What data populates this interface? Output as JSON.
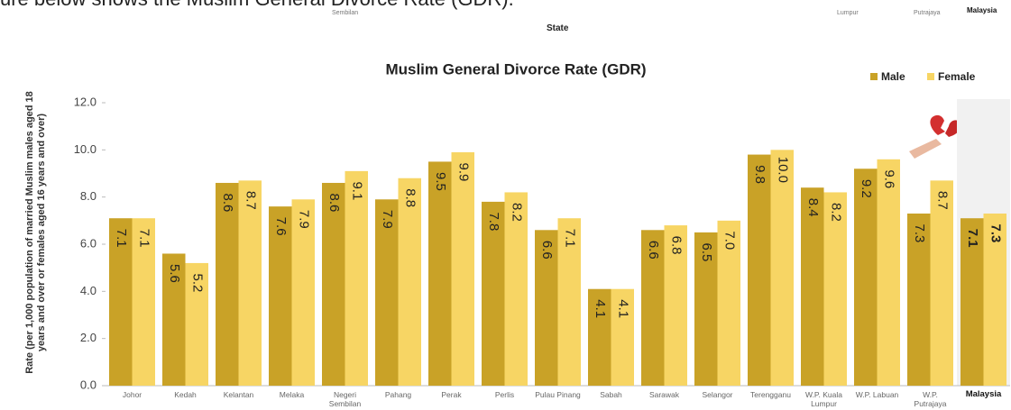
{
  "caption": "ure below shows the Muslim General Divorce Rate (GDR).",
  "previous_chart": {
    "categories": [
      "Sembilan",
      "Lumpur",
      "Putrajaya",
      "Malaysia"
    ],
    "xlabel": "State"
  },
  "chart_data": {
    "type": "bar",
    "title": "Muslim General Divorce Rate (GDR)",
    "ylabel": "Rate (per 1,000 population of married Muslim males aged 18 years and over or females aged 16 years and over)",
    "categories": [
      "Johor",
      "Kedah",
      "Kelantan",
      "Melaka",
      "Negeri Sembilan",
      "Pahang",
      "Perak",
      "Perlis",
      "Pulau Pinang",
      "Sabah",
      "Sarawak",
      "Selangor",
      "Terengganu",
      "W.P. Kuala Lumpur",
      "W.P. Labuan",
      "W.P. Putrajaya",
      "Malaysia"
    ],
    "series": [
      {
        "name": "Male",
        "color": "#c9a227",
        "values": [
          7.1,
          5.6,
          8.6,
          7.6,
          8.6,
          7.9,
          9.5,
          7.8,
          6.6,
          4.1,
          6.6,
          6.5,
          9.8,
          8.4,
          9.2,
          7.3,
          7.1
        ],
        "value_labels": [
          "7.1",
          "5.6",
          "8.6",
          "7.6",
          "8.6",
          "7.9",
          "9.5",
          "7.8",
          "6.6",
          "4.1",
          "6.6",
          "6.5",
          "9.8",
          "8.4",
          "9.2",
          "7.3",
          "7.1"
        ]
      },
      {
        "name": "Female",
        "color": "#f7d564",
        "values": [
          7.1,
          5.2,
          8.7,
          7.9,
          9.1,
          8.8,
          9.9,
          8.2,
          7.1,
          4.1,
          6.8,
          7.0,
          10.0,
          8.2,
          9.6,
          8.7,
          7.3
        ],
        "value_labels": [
          "7.1",
          "5.2",
          "8.7",
          "7.9",
          "9.1",
          "8.8",
          "9.9",
          "8.2",
          "7.1",
          "4.1",
          "6.8",
          "7.0",
          "10.0",
          "8.2",
          "9.6",
          "8.7",
          "7.3"
        ]
      }
    ],
    "ylim": [
      0,
      12
    ],
    "yticks": [
      {
        "value": 0,
        "label": "0.0"
      },
      {
        "value": 2,
        "label": "2.0"
      },
      {
        "value": 4,
        "label": "4.0"
      },
      {
        "value": 6,
        "label": "6.0"
      },
      {
        "value": 8,
        "label": "8.0"
      },
      {
        "value": 10,
        "label": "10.0"
      },
      {
        "value": 12,
        "label": "12.0"
      }
    ],
    "legend": "top-right"
  }
}
